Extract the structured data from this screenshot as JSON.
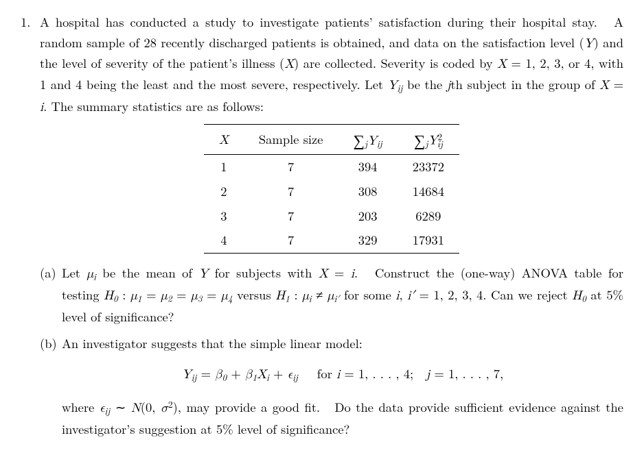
{
  "problem": {
    "number": "1.",
    "intro_html": "A hospital has conducted a study to investigate patients’ satisfaction during their hospital stay.&nbsp;&nbsp;A random sample of 28 recently discharged patients is obtained, and data on the satisfaction level (<span class=\"math\">Y</span>) and the level of severity of the patient’s illness (<span class=\"math\">X</span>) are collected. Severity is coded by <span class=\"math\">X</span> = 1, 2, 3, or 4, with 1 and 4 being the least and the most severe, respectively. Let <span class=\"math\">Y<span class=\"sub\">ij</span></span> be the <span class=\"math\">j</span>th subject in the group of <span class=\"math\">X</span> = <span class=\"math\">i</span>. The summary statistics are as follows:"
  },
  "table": {
    "header": {
      "c1": "X",
      "c2": "Sample size",
      "c3_html": "<span class=\"bigop\">∑</span><span class=\"sub\">j</span><span class=\"math\">Y<span class=\"sub\">ij</span></span>",
      "c4_html": "<span class=\"bigop\">∑</span><span class=\"sub\">j</span><span class=\"math\">Y</span><span class=\"sup\">2</span><span class=\"sub\" style=\"margin-left:-0.55em;\">ij</span>"
    },
    "rows": [
      {
        "x": "1",
        "n": "7",
        "sumY": "394",
        "sumY2": "23372"
      },
      {
        "x": "2",
        "n": "7",
        "sumY": "308",
        "sumY2": "14684"
      },
      {
        "x": "3",
        "n": "7",
        "sumY": "203",
        "sumY2": "6289"
      },
      {
        "x": "4",
        "n": "7",
        "sumY": "329",
        "sumY2": "17931"
      }
    ]
  },
  "parts": {
    "a": {
      "label": "(a)",
      "html": "Let <span class=\"math\">μ<span class=\"sub\">i</span></span> be the mean of <span class=\"math\">Y</span> for subjects with <span class=\"math\">X</span> = <span class=\"math\">i</span>.&nbsp;&nbsp;Construct the (one-way) ANOVA table for testing <span class=\"math\">H</span><span class=\"sub rm\">0</span> : <span class=\"math\">μ</span><span class=\"sub rm\">1</span> = <span class=\"math\">μ</span><span class=\"sub rm\">2</span> = <span class=\"math\">μ</span><span class=\"sub rm\">3</span> = <span class=\"math\">μ</span><span class=\"sub rm\">4</span> versus <span class=\"math\">H</span><span class=\"sub rm\">1</span> : <span class=\"math\">μ<span class=\"sub\">i</span></span> ≠ <span class=\"math\">μ<span class=\"sub\">i′</span></span> for some <span class=\"math\">i</span>, <span class=\"math\">i′</span> = 1, 2, 3, 4. Can we reject <span class=\"math\">H</span><span class=\"sub rm\">0</span> at 5% level of significance?"
    },
    "b": {
      "label": "(b)",
      "intro": "An investigator suggests that the simple linear model:",
      "equation_html": "<span class=\"math\">Y<span class=\"sub\">ij</span></span> = <span class=\"math\">β</span><span class=\"sub rm\">0</span> + <span class=\"math\">β</span><span class=\"sub rm\">1</span><span class=\"math\">X<span class=\"sub\">i</span></span> + <span class=\"math\">ϵ<span class=\"sub\">ij</span></span>&nbsp;&nbsp;&nbsp;for <span class=\"math\">i</span> = 1, . . . , 4;&nbsp;&nbsp;<span class=\"math\">j</span> = 1, . . . , 7,",
      "tail_html": "where <span class=\"math\">ϵ<span class=\"sub\">ij</span></span> ∼ <span class=\"math\">N</span>(0, <span class=\"math\">σ</span><span class=\"sup\">2</span>), may provide a good fit.&nbsp;&nbsp;Do the data provide sufficient evidence against the investigator’s suggestion at 5% level of significance?"
    }
  }
}
